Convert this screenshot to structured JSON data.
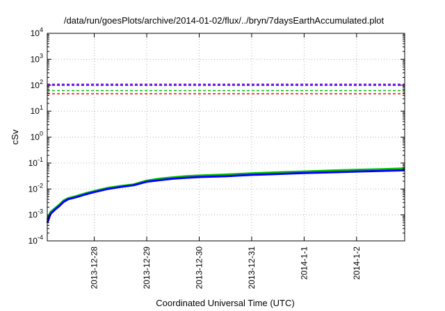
{
  "chart_data": {
    "type": "line",
    "title": "/data/run/goesPlots/archive/2014-01-02/flux/../bryn/7daysEarthAccumulated.plot",
    "xlabel": "Coordinated Universal Time (UTC)",
    "ylabel": "cSv",
    "y_scale": "log",
    "ylim": [
      0.0001,
      10000
    ],
    "y_ticks": [
      {
        "value": 0.0001,
        "base": "10",
        "exp": "-4"
      },
      {
        "value": 0.001,
        "base": "10",
        "exp": "-3"
      },
      {
        "value": 0.01,
        "base": "10",
        "exp": "-2"
      },
      {
        "value": 0.1,
        "base": "10",
        "exp": "-1"
      },
      {
        "value": 1,
        "base": "10",
        "exp": "0"
      },
      {
        "value": 10,
        "base": "10",
        "exp": "1"
      },
      {
        "value": 100,
        "base": "10",
        "exp": "2"
      },
      {
        "value": 1000,
        "base": "10",
        "exp": "3"
      },
      {
        "value": 10000,
        "base": "10",
        "exp": "4"
      }
    ],
    "x_unit": "days",
    "xlim": [
      "2013-12-27T02:30Z",
      "2014-01-02T22:00Z"
    ],
    "x_ticks": [
      {
        "value": "2013-12-28T00:00Z",
        "label": "2013-12-28"
      },
      {
        "value": "2013-12-29T00:00Z",
        "label": "2013-12-29"
      },
      {
        "value": "2013-12-30T00:00Z",
        "label": "2013-12-30"
      },
      {
        "value": "2013-12-31T00:00Z",
        "label": "2013-12-31"
      },
      {
        "value": "2014-01-01T00:00Z",
        "label": "2014-1-1"
      },
      {
        "value": "2014-01-02T00:00Z",
        "label": "2014-1-2"
      }
    ],
    "grid": true,
    "thresholds": [
      {
        "value": 110,
        "color": "#9400d3"
      },
      {
        "value": 100,
        "color": "#0000ff"
      },
      {
        "value": 62,
        "color": "#00c000"
      },
      {
        "value": 47,
        "color": "#ff0000"
      }
    ],
    "series": [
      {
        "color": "#00c000",
        "x": [
          "2013-12-27T02:30Z",
          "2013-12-27T04:00Z",
          "2013-12-27T06:00Z",
          "2013-12-27T08:00Z",
          "2013-12-27T10:00Z",
          "2013-12-27T12:00Z",
          "2013-12-27T16:00Z",
          "2013-12-27T20:00Z",
          "2013-12-28T00:00Z",
          "2013-12-28T06:00Z",
          "2013-12-28T12:00Z",
          "2013-12-28T18:00Z",
          "2013-12-29T00:00Z",
          "2013-12-29T06:00Z",
          "2013-12-29T12:00Z",
          "2013-12-29T18:00Z",
          "2013-12-30T00:00Z",
          "2013-12-30T12:00Z",
          "2013-12-31T00:00Z",
          "2013-12-31T12:00Z",
          "2014-01-01T00:00Z",
          "2014-01-01T12:00Z",
          "2014-01-02T00:00Z",
          "2014-01-02T12:00Z",
          "2014-01-02T22:00Z"
        ],
        "y": [
          0.00065,
          0.0013,
          0.0018,
          0.0025,
          0.0036,
          0.0044,
          0.0054,
          0.0068,
          0.0083,
          0.011,
          0.013,
          0.015,
          0.021,
          0.025,
          0.028,
          0.031,
          0.033,
          0.036,
          0.04,
          0.044,
          0.047,
          0.051,
          0.055,
          0.058,
          0.062
        ]
      },
      {
        "color": "#0000ff",
        "x": [
          "2013-12-27T02:30Z",
          "2013-12-27T04:00Z",
          "2013-12-27T06:00Z",
          "2013-12-27T08:00Z",
          "2013-12-27T10:00Z",
          "2013-12-27T12:00Z",
          "2013-12-27T16:00Z",
          "2013-12-27T20:00Z",
          "2013-12-28T00:00Z",
          "2013-12-28T06:00Z",
          "2013-12-28T12:00Z",
          "2013-12-28T18:00Z",
          "2013-12-29T00:00Z",
          "2013-12-29T06:00Z",
          "2013-12-29T12:00Z",
          "2013-12-29T18:00Z",
          "2013-12-30T00:00Z",
          "2013-12-30T12:00Z",
          "2013-12-31T00:00Z",
          "2013-12-31T12:00Z",
          "2014-01-01T00:00Z",
          "2014-01-01T12:00Z",
          "2014-01-02T00:00Z",
          "2014-01-02T12:00Z",
          "2014-01-02T22:00Z"
        ],
        "y": [
          0.0005,
          0.0011,
          0.0016,
          0.0022,
          0.0032,
          0.004,
          0.0049,
          0.0062,
          0.0076,
          0.01,
          0.012,
          0.014,
          0.019,
          0.022,
          0.025,
          0.027,
          0.029,
          0.031,
          0.035,
          0.038,
          0.041,
          0.044,
          0.047,
          0.05,
          0.053
        ]
      }
    ]
  }
}
